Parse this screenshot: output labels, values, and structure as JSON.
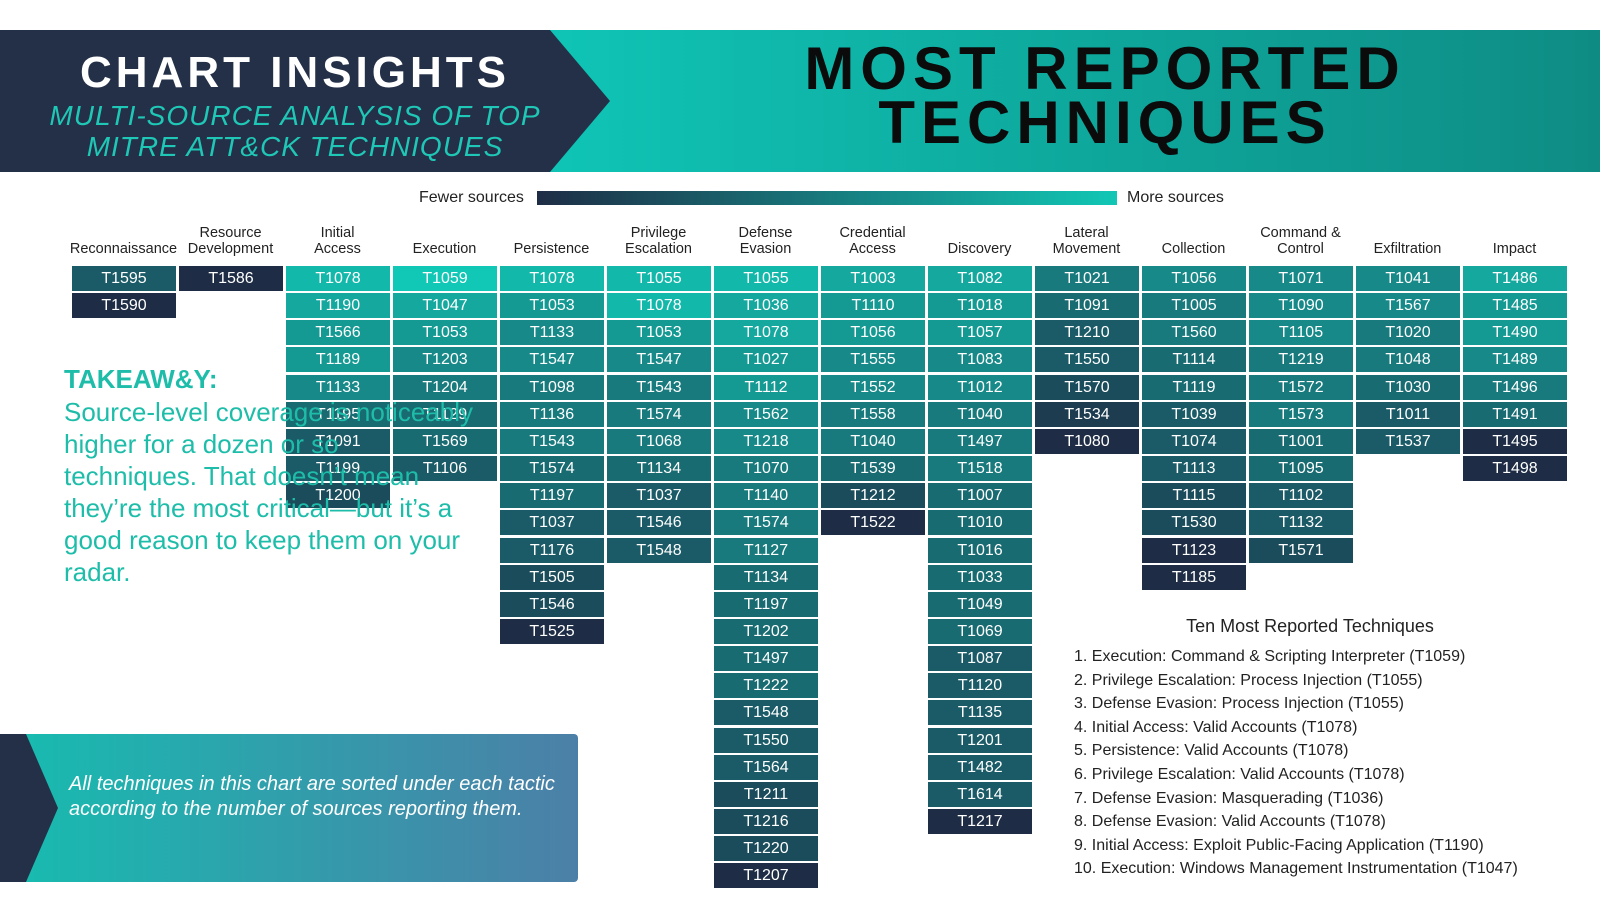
{
  "header": {
    "title": "CHART INSIGHTS",
    "subtitle_line1": "MULTI-SOURCE ANALYSIS OF TOP",
    "subtitle_line2": "MITRE ATT&CK TECHNIQUES",
    "main_line1": "MOST REPORTED",
    "main_line2": "TECHNIQUES"
  },
  "legend": {
    "low": "Fewer sources",
    "high": "More sources",
    "color_low": "#1e2d45",
    "color_high": "#11c7b5"
  },
  "takeaway": {
    "heading": "TAKEAW&Y:",
    "body": "Source-level coverage is noticeably higher for a dozen or so techniques. That doesn’t mean they’re the most critical—but it’s a good reason to keep them on your radar."
  },
  "note": {
    "text": "All techniques in this chart are sorted under each tactic according to the number of sources reporting them."
  },
  "top10": {
    "title": "Ten Most Reported Techniques",
    "items": [
      "1. Execution: Command & Scripting Interpreter (T1059)",
      "2. Privilege Escalation: Process Injection (T1055)",
      "3. Defense Evasion: Process Injection (T1055)",
      "4. Initial Access: Valid Accounts (T1078)",
      "5. Persistence: Valid Accounts (T1078)",
      "6. Privilege Escalation: Valid Accounts (T1078)",
      "7. Defense Evasion: Masquerading (T1036)",
      "8. Defense Evasion: Valid Accounts (T1078)",
      "9. Initial Access: Exploit Public-Facing Application (T1190)",
      "10. Execution: Windows Management Instrumentation (T1047)"
    ]
  },
  "chart_data": {
    "type": "table",
    "color_scale": {
      "min_color": "#1e2d45",
      "max_color": "#11c7b5",
      "levels": 10
    },
    "tactics": [
      {
        "name": "Reconnaissance",
        "techniques": [
          {
            "id": "T1595",
            "level": 3
          },
          {
            "id": "T1590",
            "level": 0
          }
        ]
      },
      {
        "name": "Resource\nDevelopment",
        "techniques": [
          {
            "id": "T1586",
            "level": 0
          }
        ]
      },
      {
        "name": "Initial\nAccess",
        "techniques": [
          {
            "id": "T1078",
            "level": 9
          },
          {
            "id": "T1190",
            "level": 8
          },
          {
            "id": "T1566",
            "level": 7
          },
          {
            "id": "T1189",
            "level": 7
          },
          {
            "id": "T1133",
            "level": 6
          },
          {
            "id": "T1195",
            "level": 4
          },
          {
            "id": "T1091",
            "level": 3
          },
          {
            "id": "T1199",
            "level": 3
          },
          {
            "id": "T1200",
            "level": 2
          }
        ]
      },
      {
        "name": "Execution",
        "techniques": [
          {
            "id": "T1059",
            "level": 10
          },
          {
            "id": "T1047",
            "level": 8
          },
          {
            "id": "T1053",
            "level": 7
          },
          {
            "id": "T1203",
            "level": 6
          },
          {
            "id": "T1204",
            "level": 5
          },
          {
            "id": "T1129",
            "level": 4
          },
          {
            "id": "T1569",
            "level": 4
          },
          {
            "id": "T1106",
            "level": 3
          }
        ]
      },
      {
        "name": "Persistence",
        "techniques": [
          {
            "id": "T1078",
            "level": 9
          },
          {
            "id": "T1053",
            "level": 7
          },
          {
            "id": "T1133",
            "level": 6
          },
          {
            "id": "T1547",
            "level": 6
          },
          {
            "id": "T1098",
            "level": 5
          },
          {
            "id": "T1136",
            "level": 5
          },
          {
            "id": "T1543",
            "level": 5
          },
          {
            "id": "T1574",
            "level": 4
          },
          {
            "id": "T1197",
            "level": 4
          },
          {
            "id": "T1037",
            "level": 3
          },
          {
            "id": "T1176",
            "level": 3
          },
          {
            "id": "T1505",
            "level": 2
          },
          {
            "id": "T1546",
            "level": 2
          },
          {
            "id": "T1525",
            "level": 0
          }
        ]
      },
      {
        "name": "Privilege\nEscalation",
        "techniques": [
          {
            "id": "T1055",
            "level": 9
          },
          {
            "id": "T1078",
            "level": 9
          },
          {
            "id": "T1053",
            "level": 7
          },
          {
            "id": "T1547",
            "level": 6
          },
          {
            "id": "T1543",
            "level": 5
          },
          {
            "id": "T1574",
            "level": 5
          },
          {
            "id": "T1068",
            "level": 5
          },
          {
            "id": "T1134",
            "level": 4
          },
          {
            "id": "T1037",
            "level": 3
          },
          {
            "id": "T1546",
            "level": 3
          },
          {
            "id": "T1548",
            "level": 3
          }
        ]
      },
      {
        "name": "Defense\nEvasion",
        "techniques": [
          {
            "id": "T1055",
            "level": 9
          },
          {
            "id": "T1036",
            "level": 8
          },
          {
            "id": "T1078",
            "level": 8
          },
          {
            "id": "T1027",
            "level": 7
          },
          {
            "id": "T1112",
            "level": 7
          },
          {
            "id": "T1562",
            "level": 6
          },
          {
            "id": "T1218",
            "level": 6
          },
          {
            "id": "T1070",
            "level": 5
          },
          {
            "id": "T1140",
            "level": 5
          },
          {
            "id": "T1574",
            "level": 5
          },
          {
            "id": "T1127",
            "level": 5
          },
          {
            "id": "T1134",
            "level": 4
          },
          {
            "id": "T1197",
            "level": 4
          },
          {
            "id": "T1202",
            "level": 4
          },
          {
            "id": "T1497",
            "level": 4
          },
          {
            "id": "T1222",
            "level": 4
          },
          {
            "id": "T1548",
            "level": 3
          },
          {
            "id": "T1550",
            "level": 3
          },
          {
            "id": "T1564",
            "level": 3
          },
          {
            "id": "T1211",
            "level": 2
          },
          {
            "id": "T1216",
            "level": 2
          },
          {
            "id": "T1220",
            "level": 2
          },
          {
            "id": "T1207",
            "level": 0
          }
        ]
      },
      {
        "name": "Credential\nAccess",
        "techniques": [
          {
            "id": "T1003",
            "level": 8
          },
          {
            "id": "T1110",
            "level": 7
          },
          {
            "id": "T1056",
            "level": 7
          },
          {
            "id": "T1555",
            "level": 6
          },
          {
            "id": "T1552",
            "level": 6
          },
          {
            "id": "T1558",
            "level": 5
          },
          {
            "id": "T1040",
            "level": 5
          },
          {
            "id": "T1539",
            "level": 4
          },
          {
            "id": "T1212",
            "level": 2
          },
          {
            "id": "T1522",
            "level": 0
          }
        ]
      },
      {
        "name": "Discovery",
        "techniques": [
          {
            "id": "T1082",
            "level": 8
          },
          {
            "id": "T1018",
            "level": 7
          },
          {
            "id": "T1057",
            "level": 7
          },
          {
            "id": "T1083",
            "level": 6
          },
          {
            "id": "T1012",
            "level": 6
          },
          {
            "id": "T1040",
            "level": 5
          },
          {
            "id": "T1497",
            "level": 5
          },
          {
            "id": "T1518",
            "level": 5
          },
          {
            "id": "T1007",
            "level": 4
          },
          {
            "id": "T1010",
            "level": 4
          },
          {
            "id": "T1016",
            "level": 4
          },
          {
            "id": "T1033",
            "level": 4
          },
          {
            "id": "T1049",
            "level": 4
          },
          {
            "id": "T1069",
            "level": 4
          },
          {
            "id": "T1087",
            "level": 3
          },
          {
            "id": "T1120",
            "level": 3
          },
          {
            "id": "T1135",
            "level": 3
          },
          {
            "id": "T1201",
            "level": 3
          },
          {
            "id": "T1482",
            "level": 3
          },
          {
            "id": "T1614",
            "level": 3
          },
          {
            "id": "T1217",
            "level": 0
          }
        ]
      },
      {
        "name": "Lateral\nMovement",
        "techniques": [
          {
            "id": "T1021",
            "level": 5
          },
          {
            "id": "T1091",
            "level": 4
          },
          {
            "id": "T1210",
            "level": 3
          },
          {
            "id": "T1550",
            "level": 3
          },
          {
            "id": "T1570",
            "level": 2
          },
          {
            "id": "T1534",
            "level": 1
          },
          {
            "id": "T1080",
            "level": 0
          }
        ]
      },
      {
        "name": "Collection",
        "techniques": [
          {
            "id": "T1056",
            "level": 6
          },
          {
            "id": "T1005",
            "level": 5
          },
          {
            "id": "T1560",
            "level": 5
          },
          {
            "id": "T1114",
            "level": 4
          },
          {
            "id": "T1119",
            "level": 4
          },
          {
            "id": "T1039",
            "level": 3
          },
          {
            "id": "T1074",
            "level": 3
          },
          {
            "id": "T1113",
            "level": 3
          },
          {
            "id": "T1115",
            "level": 2
          },
          {
            "id": "T1530",
            "level": 2
          },
          {
            "id": "T1123",
            "level": 0
          },
          {
            "id": "T1185",
            "level": 0
          }
        ]
      },
      {
        "name": "Command &\nControl",
        "techniques": [
          {
            "id": "T1071",
            "level": 6
          },
          {
            "id": "T1090",
            "level": 6
          },
          {
            "id": "T1105",
            "level": 6
          },
          {
            "id": "T1219",
            "level": 5
          },
          {
            "id": "T1572",
            "level": 5
          },
          {
            "id": "T1573",
            "level": 5
          },
          {
            "id": "T1001",
            "level": 4
          },
          {
            "id": "T1095",
            "level": 4
          },
          {
            "id": "T1102",
            "level": 3
          },
          {
            "id": "T1132",
            "level": 3
          },
          {
            "id": "T1571",
            "level": 2
          }
        ]
      },
      {
        "name": "Exfiltration",
        "techniques": [
          {
            "id": "T1041",
            "level": 6
          },
          {
            "id": "T1567",
            "level": 6
          },
          {
            "id": "T1020",
            "level": 5
          },
          {
            "id": "T1048",
            "level": 5
          },
          {
            "id": "T1030",
            "level": 4
          },
          {
            "id": "T1011",
            "level": 3
          },
          {
            "id": "T1537",
            "level": 3
          }
        ]
      },
      {
        "name": "Impact",
        "techniques": [
          {
            "id": "T1486",
            "level": 8
          },
          {
            "id": "T1485",
            "level": 7
          },
          {
            "id": "T1490",
            "level": 7
          },
          {
            "id": "T1489",
            "level": 6
          },
          {
            "id": "T1496",
            "level": 5
          },
          {
            "id": "T1491",
            "level": 4
          },
          {
            "id": "T1495",
            "level": 0
          },
          {
            "id": "T1498",
            "level": 0
          }
        ]
      }
    ]
  }
}
